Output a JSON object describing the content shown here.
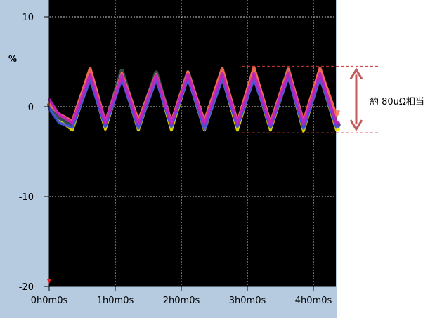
{
  "chart_data": {
    "type": "line",
    "ylabel": "%",
    "ylim": [
      -20,
      10
    ],
    "yticks": [
      10,
      0,
      -10,
      -20
    ],
    "ytick_labels": [
      "10",
      "0",
      "-10",
      "-20"
    ],
    "xlim": [
      0,
      4.4
    ],
    "xticks": [
      0,
      1,
      2,
      3,
      4
    ],
    "xtick_labels": [
      "0h0m0s",
      "1h0m0s",
      "2h0m0s",
      "3h0m0s",
      "4h0m0s"
    ],
    "grid": true,
    "series": [
      {
        "color": "#f2e600",
        "x": [
          0,
          0.15,
          0.35,
          0.62,
          0.85,
          1.1,
          1.35,
          1.62,
          1.85,
          2.1,
          2.35,
          2.62,
          2.85,
          3.1,
          3.35,
          3.62,
          3.85,
          4.1,
          4.35,
          4.38
        ],
        "y": [
          0,
          -1.5,
          -2.6,
          3.4,
          -2.5,
          3.4,
          -2.6,
          3.3,
          -2.6,
          3.3,
          -2.6,
          3.3,
          -2.6,
          3.4,
          -2.6,
          3.5,
          -2.7,
          3.4,
          -2.6,
          -2.5
        ]
      },
      {
        "color": "#2f4f4f",
        "x": [
          0,
          0.15,
          0.35,
          0.62,
          0.85,
          1.1,
          1.35,
          1.62,
          1.85,
          2.1,
          2.35,
          2.62,
          2.85,
          3.1,
          3.35,
          3.62,
          3.85,
          4.1,
          4.35,
          4.38
        ],
        "y": [
          0.2,
          -1.2,
          -2.0,
          3.9,
          -2.0,
          4.0,
          -2.0,
          3.8,
          -2.0,
          3.8,
          -2.0,
          3.9,
          -2.0,
          4.0,
          -2.1,
          4.1,
          -2.2,
          4.0,
          -2.0,
          -2.0
        ]
      },
      {
        "color": "#ff7050",
        "x": [
          0,
          0.15,
          0.35,
          0.62,
          0.85,
          1.1,
          1.35,
          1.62,
          1.85,
          2.1,
          2.35,
          2.62,
          2.85,
          3.1,
          3.35,
          3.62,
          3.85,
          4.1,
          4.35,
          4.38
        ],
        "y": [
          0.3,
          -0.8,
          -1.6,
          4.3,
          -1.7,
          3.7,
          -1.5,
          3.6,
          -1.7,
          3.9,
          -1.6,
          4.3,
          -1.7,
          4.4,
          -1.8,
          4.2,
          -1.6,
          4.3,
          -1.0,
          -0.5
        ]
      },
      {
        "color": "#4050e0",
        "x": [
          0,
          0.15,
          0.35,
          0.62,
          0.85,
          1.1,
          1.35,
          1.62,
          1.85,
          2.1,
          2.35,
          2.62,
          2.85,
          3.1,
          3.35,
          3.62,
          3.85,
          4.1,
          4.35,
          4.38
        ],
        "y": [
          -0.2,
          -1.8,
          -2.3,
          3.0,
          -2.2,
          3.1,
          -2.4,
          3.0,
          -2.2,
          3.2,
          -2.5,
          3.1,
          -2.2,
          3.1,
          -2.3,
          3.3,
          -2.4,
          3.2,
          -2.3,
          -2.2
        ]
      },
      {
        "color": "#c020c0",
        "x": [
          0,
          0.15,
          0.35,
          0.62,
          0.85,
          1.1,
          1.35,
          1.62,
          1.85,
          2.1,
          2.35,
          2.62,
          2.85,
          3.1,
          3.35,
          3.62,
          3.85,
          4.1,
          4.35,
          4.38
        ],
        "y": [
          0.8,
          -0.9,
          -1.8,
          3.6,
          -1.8,
          3.5,
          -1.9,
          3.5,
          -1.9,
          3.6,
          -1.9,
          3.7,
          -1.9,
          3.7,
          -2.0,
          3.8,
          -1.9,
          3.7,
          -1.9,
          -1.8
        ]
      }
    ],
    "annotation": {
      "text": "約 80uΩ相当",
      "range": [
        4.5,
        -2.9
      ],
      "line_color": "#cc3333",
      "arrow_color": "#c25a5a"
    }
  }
}
